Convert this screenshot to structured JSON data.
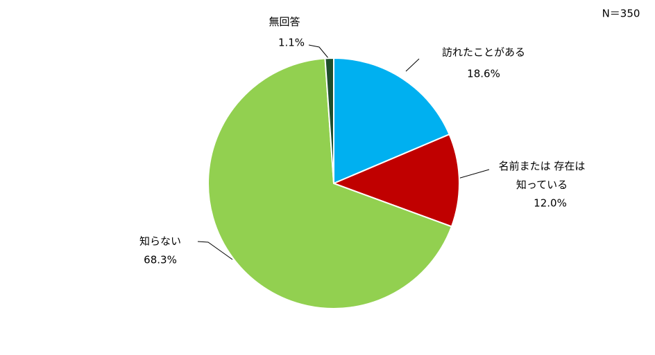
{
  "chart_data": {
    "type": "pie",
    "note": "N＝350",
    "categories": [
      "訪れたことがある",
      "名前または 存在は\n知っている",
      "知らない",
      "無回答"
    ],
    "values": [
      18.6,
      12.0,
      68.3,
      1.1
    ],
    "value_labels": [
      "18.6%",
      "12.0%",
      "68.3%",
      "1.1%"
    ],
    "colors": [
      "#00b0f0",
      "#c00000",
      "#92d050",
      "#1f4e2c"
    ]
  }
}
